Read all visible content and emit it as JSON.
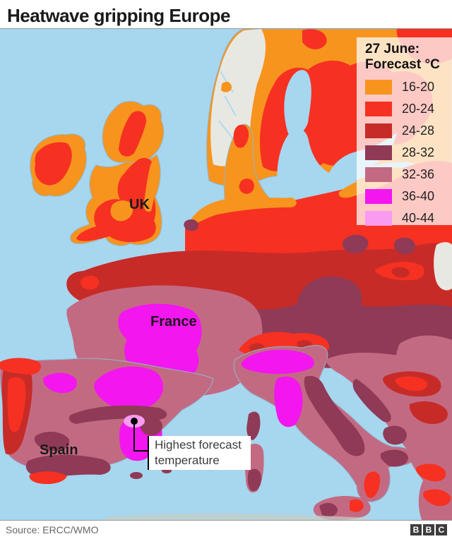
{
  "header": {
    "title": "Heatwave gripping Europe"
  },
  "map": {
    "legend": {
      "title_line1": "27 June:",
      "title_line2": "Forecast °C",
      "items": [
        {
          "range": "16-20",
          "color": "#F7941E"
        },
        {
          "range": "20-24",
          "color": "#F63122"
        },
        {
          "range": "24-28",
          "color": "#C72B27"
        },
        {
          "range": "28-32",
          "color": "#8F3A56"
        },
        {
          "range": "32-36",
          "color": "#C36A83"
        },
        {
          "range": "36-40",
          "color": "#F316EF"
        },
        {
          "range": "40-44",
          "color": "#F89BF1"
        }
      ]
    },
    "labels": {
      "uk": "UK",
      "france": "France",
      "spain": "Spain"
    },
    "annotation": {
      "line1": "Highest forecast",
      "line2": "temperature"
    },
    "colors": {
      "sea": "#A7D6EF",
      "no_data": "#E8E8E2"
    }
  },
  "footer": {
    "source": "Source: ERCC/WMO",
    "logo": [
      "B",
      "B",
      "C"
    ]
  }
}
